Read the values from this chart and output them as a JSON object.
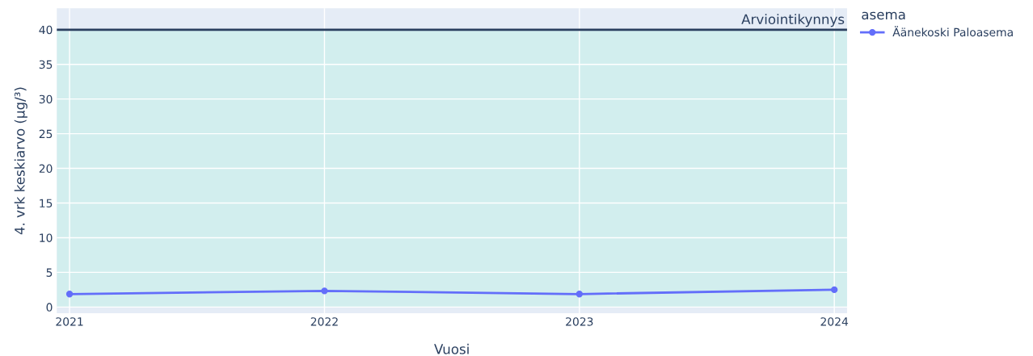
{
  "chart_data": {
    "type": "line",
    "xlabel": "Vuosi",
    "ylabel": "4. vrk keskiarvo (µg/³)",
    "legend_title": "asema",
    "x": [
      2021,
      2022,
      2023,
      2024
    ],
    "series": [
      {
        "name": "Äänekoski Paloasema",
        "color": "#636efa",
        "values": [
          1.87,
          2.33,
          1.87,
          2.5
        ]
      }
    ],
    "xlim": [
      2020.95,
      2024.05
    ],
    "xticks": [
      2021,
      2022,
      2023,
      2024
    ],
    "ylim": [
      -0.9,
      43.1
    ],
    "yticks": [
      0,
      5,
      10,
      15,
      20,
      25,
      30,
      35,
      40
    ],
    "ref_lines": [
      {
        "axis": "y",
        "value": 40,
        "label": "Arviointikynnys",
        "color": "#2a3f5f",
        "line_style": "solid"
      }
    ],
    "bands": [
      {
        "axis": "y",
        "from": 0,
        "to": 40,
        "color": "#d2eeee"
      }
    ],
    "grid": true,
    "legend": "top right",
    "marker": "circle",
    "line_style": "solid"
  }
}
